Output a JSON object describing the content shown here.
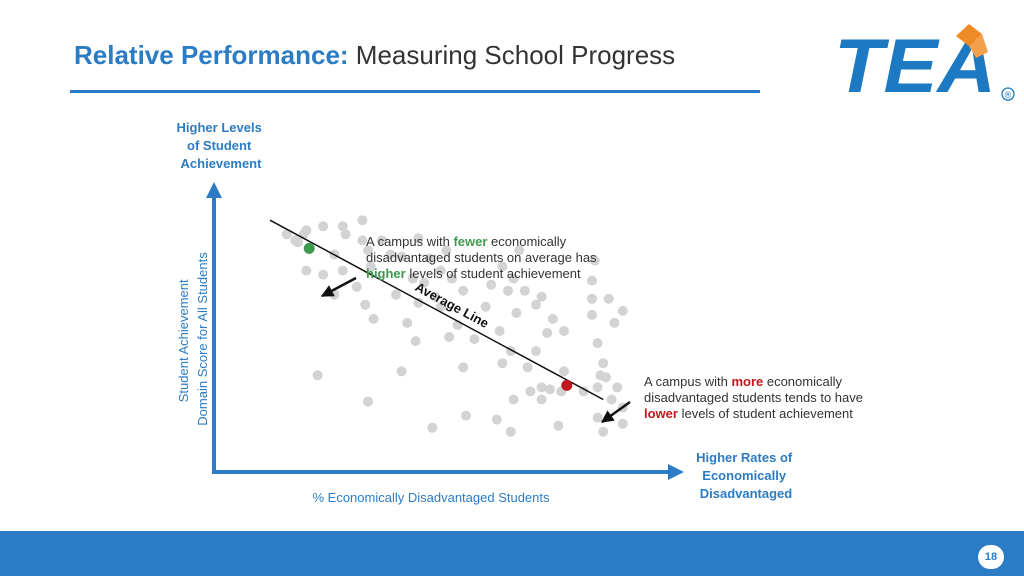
{
  "header": {
    "title_lead": "Relative Performance:",
    "title_rest": "Measuring School Progress"
  },
  "logo": {
    "text": "TEA",
    "mark": "®",
    "icon": "tea-logo"
  },
  "chart_data": {
    "type": "scatter",
    "y_top_label": [
      "Higher Levels",
      "of Student",
      "Achievement"
    ],
    "ylabel": [
      "Student Achievement",
      "Domain Score for All Students"
    ],
    "xlabel": "% Economically Disadvantaged Students",
    "x_end_label": [
      "Higher Rates of",
      "Economically",
      "Disadvantaged"
    ],
    "trend_label": "Average Line",
    "grid": false,
    "legend": "none",
    "colors": {
      "points": "#d3d3d3",
      "low": "#3d9a4e",
      "high": "#c0181e",
      "axis": "#2b7cc4"
    },
    "series": [
      {
        "points": [
          [
            6,
            88
          ],
          [
            9,
            85
          ],
          [
            10,
            84
          ],
          [
            12,
            88
          ],
          [
            19,
            92
          ],
          [
            14,
            81
          ],
          [
            13,
            90
          ],
          [
            26,
            92
          ],
          [
            33,
            95
          ],
          [
            27,
            88
          ],
          [
            33,
            85
          ],
          [
            23,
            78
          ],
          [
            35,
            80
          ],
          [
            13,
            70
          ],
          [
            19,
            68
          ],
          [
            26,
            70
          ],
          [
            40,
            85
          ],
          [
            36,
            72
          ],
          [
            43,
            78
          ],
          [
            23,
            58
          ],
          [
            31,
            62
          ],
          [
            45,
            58
          ],
          [
            34,
            53
          ],
          [
            37,
            46
          ],
          [
            53,
            86
          ],
          [
            47,
            77
          ],
          [
            51,
            66
          ],
          [
            53,
            54
          ],
          [
            49,
            44
          ],
          [
            52,
            35
          ],
          [
            55,
            64
          ],
          [
            61,
            70
          ],
          [
            57,
            76
          ],
          [
            63,
            80
          ],
          [
            65,
            66
          ],
          [
            69,
            60
          ],
          [
            61,
            52
          ],
          [
            59,
            57
          ],
          [
            64,
            37
          ],
          [
            67,
            43
          ],
          [
            73,
            36
          ],
          [
            69,
            22
          ],
          [
            77,
            52
          ],
          [
            79,
            63
          ],
          [
            83,
            72
          ],
          [
            85,
            60
          ],
          [
            82,
            40
          ],
          [
            89,
            80
          ],
          [
            87,
            66
          ],
          [
            88,
            49
          ],
          [
            91,
            60
          ],
          [
            86,
            30
          ],
          [
            83,
            24
          ],
          [
            95,
            53
          ],
          [
            97,
            57
          ],
          [
            101,
            46
          ],
          [
            99,
            39
          ],
          [
            95,
            30
          ],
          [
            92,
            22
          ],
          [
            93,
            10
          ],
          [
            97,
            12
          ],
          [
            100,
            11
          ],
          [
            104,
            10
          ],
          [
            97,
            6
          ],
          [
            105,
            20
          ],
          [
            105,
            40
          ],
          [
            115,
            48
          ],
          [
            115,
            56
          ],
          [
            115,
            65
          ],
          [
            116,
            75
          ],
          [
            117,
            34
          ],
          [
            119,
            24
          ],
          [
            118,
            18
          ],
          [
            117,
            12
          ],
          [
            112,
            10
          ],
          [
            120,
            17
          ],
          [
            122,
            6
          ],
          [
            121,
            56
          ],
          [
            123,
            44
          ],
          [
            126,
            50
          ],
          [
            124,
            12
          ],
          [
            126,
            2
          ],
          [
            126,
            -6
          ],
          [
            17,
            18
          ],
          [
            35,
            5
          ],
          [
            47,
            20
          ],
          [
            58,
            -8
          ],
          [
            70,
            -2
          ],
          [
            81,
            -4
          ],
          [
            86,
            -10
          ],
          [
            87,
            6
          ],
          [
            103,
            -7
          ],
          [
            117,
            -3
          ],
          [
            119,
            -10
          ]
        ]
      },
      {
        "name": "A campus with fewer economically disadvantaged students on average has higher levels of student achievement",
        "point": [
          14,
          81
        ],
        "lines": [
          {
            "parts": [
              {
                "text": "A campus with ",
                "hl": ""
              },
              {
                "text": "fewer",
                "hl": "green"
              },
              {
                "text": " economically",
                "hl": ""
              }
            ]
          },
          {
            "parts": [
              {
                "text": "disadvantaged students on average has",
                "hl": ""
              }
            ]
          },
          {
            "parts": [
              {
                "text": "higher",
                "hl": "green"
              },
              {
                "text": " levels of student achievement",
                "hl": ""
              }
            ]
          }
        ]
      },
      {
        "name": "A campus with more economically disadvantaged students tends to have lower levels of student achievement",
        "point": [
          106,
          13
        ],
        "lines": [
          {
            "parts": [
              {
                "text": "A campus with ",
                "hl": ""
              },
              {
                "text": "more",
                "hl": "red"
              },
              {
                "text": " economically",
                "hl": ""
              }
            ]
          },
          {
            "parts": [
              {
                "text": "disadvantaged students tends to have",
                "hl": ""
              }
            ]
          },
          {
            "parts": [
              {
                "text": "lower",
                "hl": "red"
              },
              {
                "text": " levels of student achievement",
                "hl": ""
              }
            ]
          }
        ]
      }
    ],
    "trend": [
      [
        0,
        95
      ],
      [
        119,
        6
      ]
    ],
    "xlim": [
      -20,
      145
    ],
    "ylim": [
      -30,
      110
    ]
  },
  "footer": {
    "page_number": "18"
  }
}
